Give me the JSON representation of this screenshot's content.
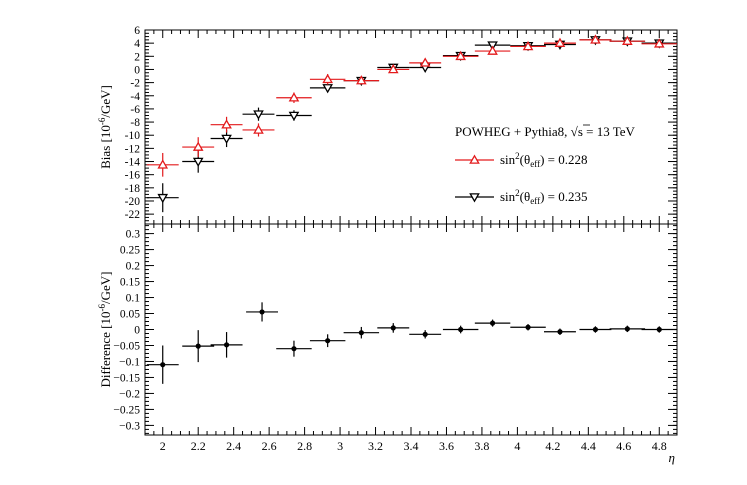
{
  "chart_data": [
    {
      "type": "scatter",
      "ylabel": "Bias [10",
      "ylabel_exp": "-6",
      "ylabel_unit": "/GeV]",
      "ylim": [
        -23.5,
        6
      ],
      "xlim": [
        1.9,
        4.9
      ],
      "grid": false,
      "yticks": [
        6,
        4,
        2,
        0,
        -2,
        -4,
        -6,
        -8,
        -10,
        -12,
        -14,
        -16,
        -18,
        -20,
        -22
      ],
      "legend": {
        "placement": "center-right",
        "title": "POWHEG + Pythia8,",
        "title_energy": "s = 13 TeV",
        "entries": [
          {
            "prefix": "sin",
            "sup": "2",
            "mid": "(θ",
            "sub": "eff",
            "suffix": ") = 0.228",
            "color": "#e31a1c",
            "marker": "triangle-up"
          },
          {
            "prefix": "sin",
            "sup": "2",
            "mid": "(θ",
            "sub": "eff",
            "suffix": ") = 0.235",
            "color": "#000000",
            "marker": "triangle-down"
          }
        ]
      },
      "series": [
        {
          "color": "#e31a1c",
          "marker": "triangle-up",
          "x": [
            2.0,
            2.2,
            2.36,
            2.54,
            2.74,
            2.93,
            3.12,
            3.3,
            3.48,
            3.68,
            3.86,
            4.06,
            4.24,
            4.44,
            4.62,
            4.8
          ],
          "xerr": [
            0.09,
            0.09,
            0.09,
            0.09,
            0.1,
            0.1,
            0.1,
            0.09,
            0.09,
            0.1,
            0.1,
            0.1,
            0.09,
            0.09,
            0.1,
            0.1
          ],
          "y": [
            -14.5,
            -11.8,
            -8.4,
            -9.2,
            -4.3,
            -1.5,
            -1.7,
            0.0,
            1.0,
            2.0,
            2.8,
            3.5,
            4.0,
            4.5,
            4.3,
            3.9
          ],
          "yerr": [
            1.8,
            1.5,
            1.2,
            1.0,
            0.8,
            0.8,
            0.6,
            0.5,
            0.4,
            0.3,
            0.3,
            0.3,
            0.3,
            0.3,
            0.3,
            0.3
          ]
        },
        {
          "color": "#000000",
          "marker": "triangle-down",
          "x": [
            2.0,
            2.2,
            2.36,
            2.54,
            2.74,
            2.93,
            3.12,
            3.3,
            3.48,
            3.68,
            3.86,
            4.06,
            4.24,
            4.44,
            4.62,
            4.8
          ],
          "xerr": [
            0.09,
            0.09,
            0.09,
            0.09,
            0.1,
            0.1,
            0.1,
            0.09,
            0.09,
            0.1,
            0.1,
            0.1,
            0.09,
            0.09,
            0.1,
            0.1
          ],
          "y": [
            -19.5,
            -14.0,
            -10.5,
            -6.8,
            -7.0,
            -2.8,
            -1.7,
            0.3,
            0.3,
            2.1,
            3.7,
            3.6,
            3.8,
            4.5,
            4.3,
            4.0
          ],
          "yerr": [
            2.2,
            1.7,
            1.3,
            1.0,
            0.8,
            0.6,
            0.5,
            0.4,
            0.3,
            0.3,
            0.3,
            0.3,
            0.3,
            0.3,
            0.3,
            0.3
          ]
        }
      ]
    },
    {
      "type": "scatter",
      "ylabel": "Difference [10",
      "ylabel_exp": "-6",
      "ylabel_unit": "/GeV]",
      "xlabel": "η",
      "ylim": [
        -0.33,
        0.33
      ],
      "xlim": [
        1.9,
        4.9
      ],
      "grid": false,
      "yticks": [
        0.3,
        0.25,
        0.2,
        0.15,
        0.1,
        0.05,
        0,
        -0.05,
        -0.1,
        -0.15,
        -0.2,
        -0.25,
        -0.3
      ],
      "ytick_labels": [
        "0.3",
        "0.25",
        "0.2",
        "0.15",
        "0.1",
        "0.05",
        "0",
        "−0.05",
        "−0.1",
        "−0.15",
        "−0.2",
        "−0.25",
        "−0.3"
      ],
      "xticks": [
        2,
        2.2,
        2.4,
        2.6,
        2.8,
        3,
        3.2,
        3.4,
        3.6,
        3.8,
        4,
        4.2,
        4.4,
        4.6,
        4.8
      ],
      "xtick_labels": [
        "2",
        "2.2",
        "2.4",
        "2.6",
        "2.8",
        "3",
        "3.2",
        "3.4",
        "3.6",
        "3.8",
        "4",
        "4.2",
        "4.4",
        "4.6",
        "4.8"
      ],
      "series": [
        {
          "color": "#000000",
          "marker": "circle",
          "x": [
            2.0,
            2.2,
            2.36,
            2.56,
            2.74,
            2.93,
            3.12,
            3.3,
            3.48,
            3.68,
            3.86,
            4.06,
            4.24,
            4.44,
            4.62,
            4.8
          ],
          "xerr": [
            0.09,
            0.09,
            0.09,
            0.09,
            0.1,
            0.1,
            0.1,
            0.09,
            0.09,
            0.1,
            0.1,
            0.1,
            0.09,
            0.09,
            0.1,
            0.1
          ],
          "y": [
            -0.11,
            -0.052,
            -0.048,
            0.055,
            -0.06,
            -0.035,
            -0.01,
            0.005,
            -0.015,
            0.0,
            0.02,
            0.007,
            -0.007,
            0.0,
            0.002,
            0.0
          ],
          "yerr": [
            0.06,
            0.05,
            0.04,
            0.03,
            0.025,
            0.02,
            0.018,
            0.015,
            0.013,
            0.012,
            0.011,
            0.01,
            0.01,
            0.01,
            0.01,
            0.01
          ]
        }
      ]
    }
  ]
}
